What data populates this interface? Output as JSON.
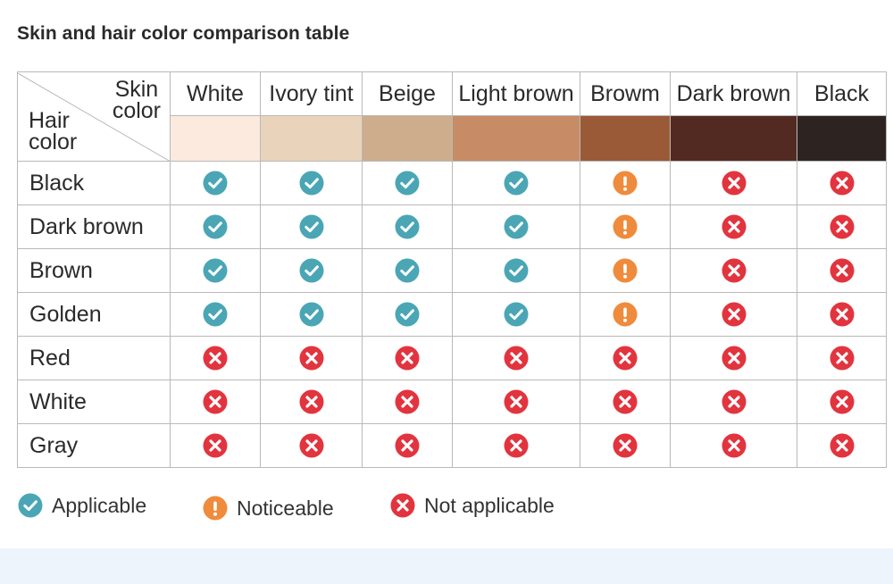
{
  "title": "Skin and hair color comparison table",
  "corner": {
    "skin_line1": "Skin",
    "skin_line2": "color",
    "hair_line1": "Hair",
    "hair_line2": "color"
  },
  "skin_colors": [
    {
      "name": "White",
      "swatch": "#fbeadd"
    },
    {
      "name": "Ivory tint",
      "swatch": "#e9d4bb"
    },
    {
      "name": "Beige",
      "swatch": "#cdad8b"
    },
    {
      "name": "Light brown",
      "swatch": "#c78c65"
    },
    {
      "name": "Browm",
      "swatch": "#9a5a37"
    },
    {
      "name": "Dark brown",
      "swatch": "#532a22"
    },
    {
      "name": "Black",
      "swatch": "#2d2422"
    }
  ],
  "rows": [
    {
      "hair": "Black",
      "marks": [
        "check",
        "check",
        "check",
        "check",
        "warn",
        "cross",
        "cross"
      ]
    },
    {
      "hair": "Dark brown",
      "marks": [
        "check",
        "check",
        "check",
        "check",
        "warn",
        "cross",
        "cross"
      ]
    },
    {
      "hair": "Brown",
      "marks": [
        "check",
        "check",
        "check",
        "check",
        "warn",
        "cross",
        "cross"
      ]
    },
    {
      "hair": "Golden",
      "marks": [
        "check",
        "check",
        "check",
        "check",
        "warn",
        "cross",
        "cross"
      ]
    },
    {
      "hair": "Red",
      "marks": [
        "cross",
        "cross",
        "cross",
        "cross",
        "cross",
        "cross",
        "cross"
      ]
    },
    {
      "hair": "White",
      "marks": [
        "cross",
        "cross",
        "cross",
        "cross",
        "cross",
        "cross",
        "cross"
      ]
    },
    {
      "hair": "Gray",
      "marks": [
        "cross",
        "cross",
        "cross",
        "cross",
        "cross",
        "cross",
        "cross"
      ]
    }
  ],
  "legend": {
    "applicable": "Applicable",
    "noticeable": "Noticeable",
    "not_applicable": "Not applicable"
  },
  "colors": {
    "check": "#4aa6b5",
    "warn": "#ef8b3c",
    "cross": "#e2343e"
  },
  "icons": {
    "check": "check-circle-icon",
    "warn": "exclamation-circle-icon",
    "cross": "cross-circle-icon"
  }
}
